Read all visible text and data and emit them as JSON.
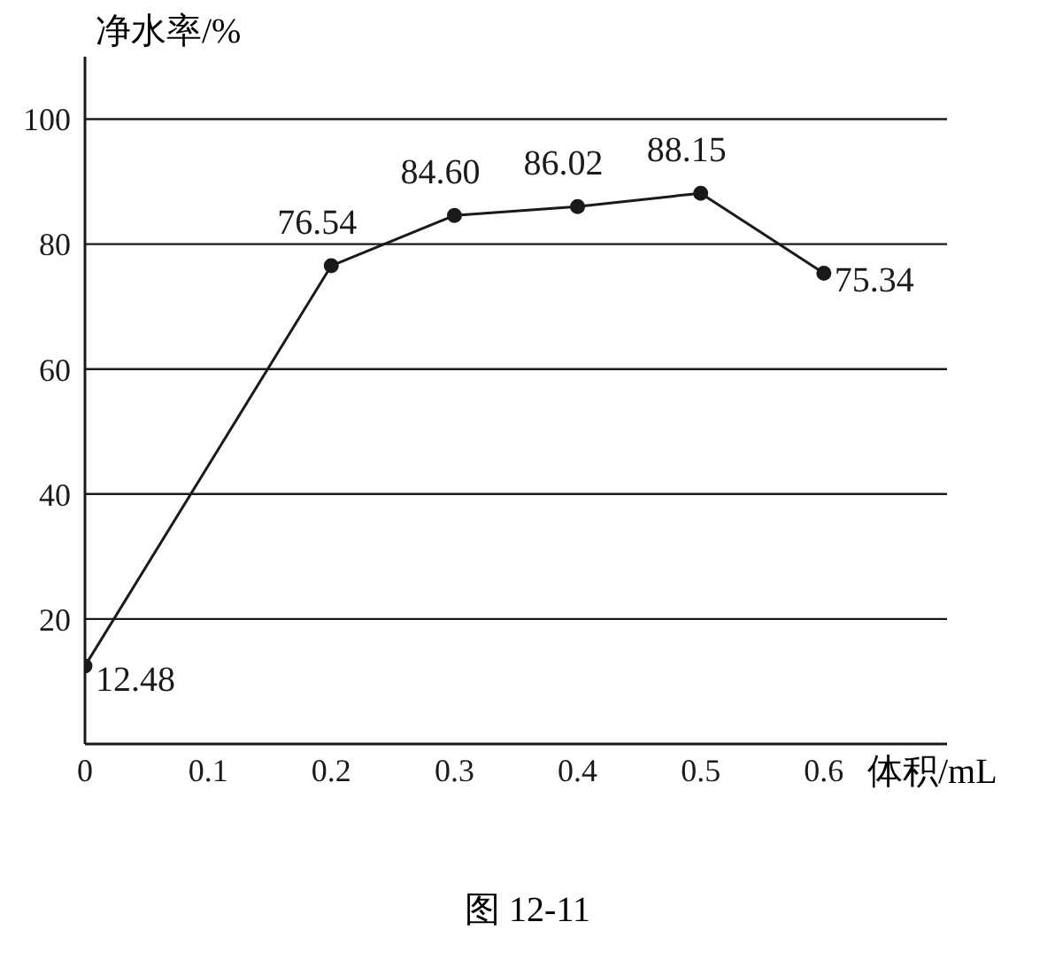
{
  "chart_data": {
    "type": "line",
    "ylabel": "净水率/%",
    "xlabel": "体积/mL",
    "annotations": [
      "图 12-11"
    ],
    "x": [
      0,
      0.2,
      0.3,
      0.4,
      0.5,
      0.6
    ],
    "series": [
      {
        "color": "#1a1a1a",
        "values": [
          12.48,
          76.54,
          84.6,
          86.02,
          88.15,
          75.34
        ],
        "value_labels": [
          "12.48",
          "76.54",
          "84.60",
          "86.02",
          "88.15",
          "75.34"
        ]
      }
    ],
    "xlim": [
      0,
      0.7
    ],
    "xticks": [
      0,
      0.1,
      0.2,
      0.3,
      0.4,
      0.5,
      0.6
    ],
    "ylim": [
      0,
      110
    ],
    "yticks": [
      20,
      40,
      60,
      80,
      100
    ],
    "grid": "y",
    "marker": "circle",
    "line_style": "solid"
  }
}
